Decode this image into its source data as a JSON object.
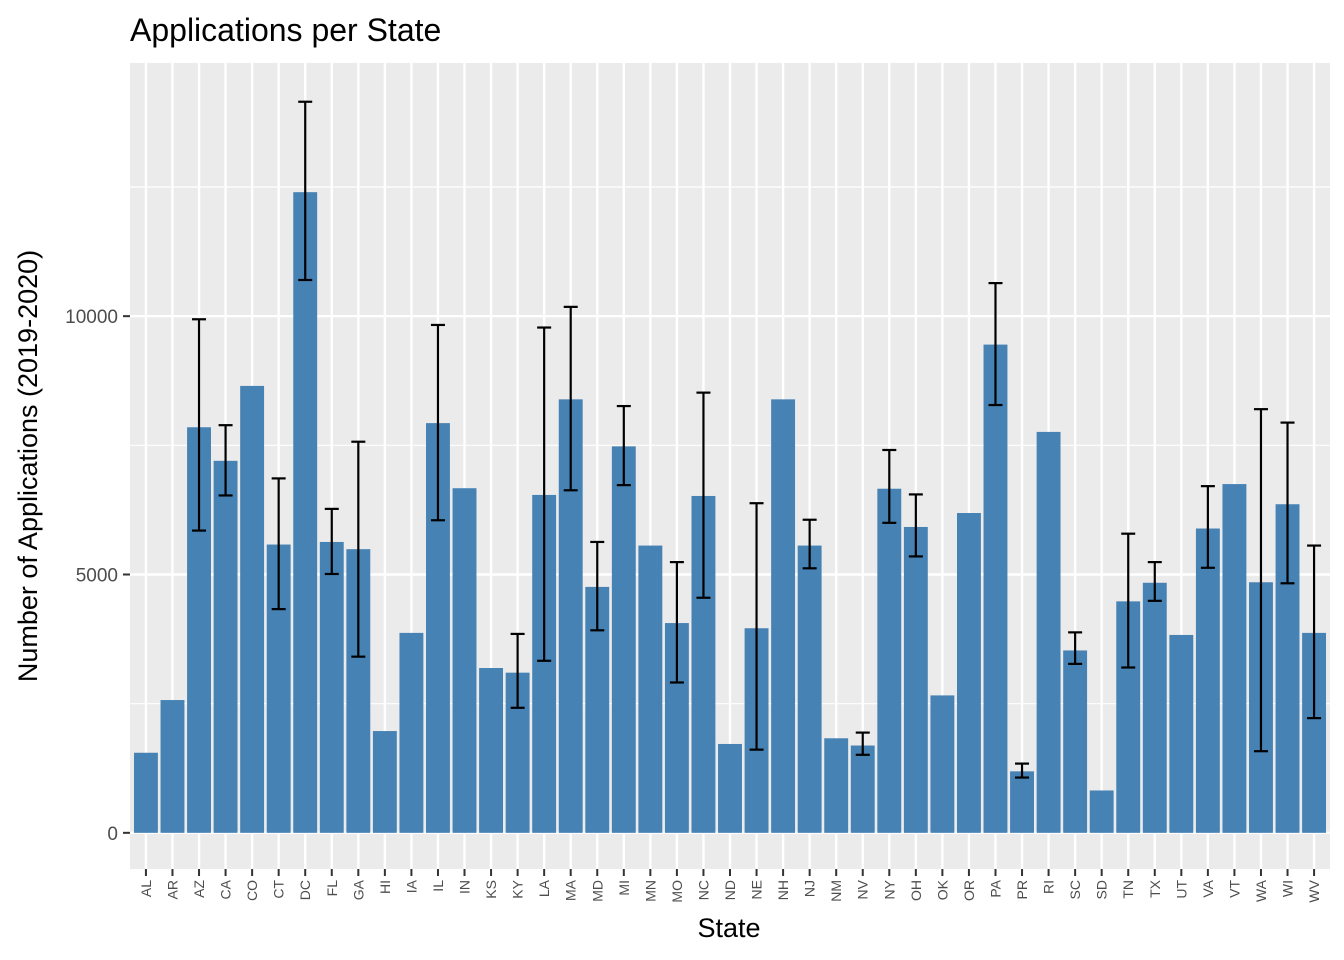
{
  "chart_data": {
    "type": "bar",
    "title": "Applications per State",
    "xlabel": "State",
    "ylabel": "Number of Applications (2019-2020)",
    "ylim": [
      -700,
      14900
    ],
    "yticks": [
      0,
      5000,
      10000
    ],
    "grid": true,
    "bar_color": "#4682B4",
    "panel_color": "#EBEBEB",
    "categories": [
      "AL",
      "AR",
      "AZ",
      "CA",
      "CO",
      "CT",
      "DC",
      "FL",
      "GA",
      "HI",
      "IA",
      "IL",
      "IN",
      "KS",
      "KY",
      "LA",
      "MA",
      "MD",
      "MI",
      "MN",
      "MO",
      "NC",
      "ND",
      "NE",
      "NH",
      "NJ",
      "NM",
      "NV",
      "NY",
      "OH",
      "OK",
      "OR",
      "PA",
      "PR",
      "RI",
      "SC",
      "SD",
      "TN",
      "TX",
      "UT",
      "VA",
      "VT",
      "WA",
      "WI",
      "WV"
    ],
    "values": [
      1550,
      2570,
      7850,
      7200,
      8650,
      5580,
      12400,
      5630,
      5490,
      1970,
      3870,
      7930,
      6670,
      3190,
      3100,
      6540,
      8390,
      4760,
      7480,
      5560,
      4060,
      6520,
      1720,
      3960,
      8390,
      5560,
      1830,
      1690,
      6660,
      5920,
      2660,
      6190,
      9450,
      1190,
      7760,
      3530,
      820,
      4480,
      4840,
      3830,
      5890,
      6750,
      4850,
      6360,
      3870
    ],
    "error_low": [
      null,
      null,
      5850,
      6530,
      null,
      4330,
      10700,
      5010,
      3410,
      null,
      null,
      6050,
      null,
      null,
      2420,
      3330,
      6630,
      3920,
      6730,
      null,
      2910,
      4550,
      null,
      1610,
      null,
      5120,
      null,
      1510,
      6000,
      5350,
      null,
      null,
      8280,
      1070,
      null,
      3270,
      null,
      3200,
      4490,
      null,
      5130,
      null,
      1580,
      4830,
      2220
    ],
    "error_high": [
      null,
      null,
      9940,
      7890,
      null,
      6860,
      14150,
      6270,
      7570,
      null,
      null,
      9830,
      null,
      null,
      3850,
      9780,
      10180,
      5630,
      8260,
      null,
      5240,
      8520,
      null,
      6380,
      null,
      6060,
      null,
      1940,
      7410,
      6550,
      null,
      null,
      10640,
      1340,
      null,
      3880,
      null,
      5790,
      5240,
      null,
      6710,
      null,
      8200,
      7940,
      5560
    ]
  }
}
